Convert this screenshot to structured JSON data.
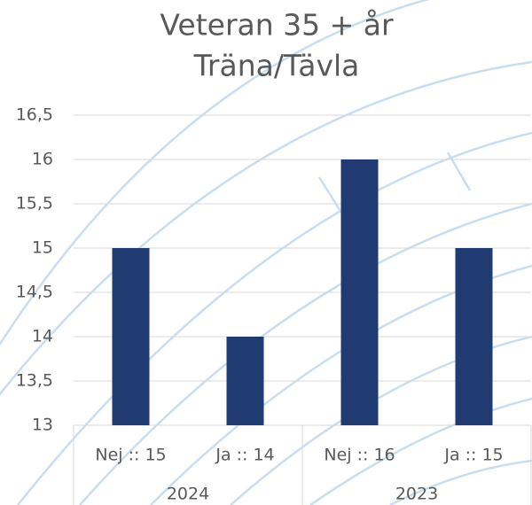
{
  "chart_data": {
    "type": "bar",
    "title": [
      "Veteran 35 + år",
      "Träna/Tävla"
    ],
    "categories": [
      "Nej :: 15",
      "Ja :: 14",
      "Nej :: 16",
      "Ja :: 15"
    ],
    "groups": [
      "2024",
      "2023"
    ],
    "values": [
      15,
      14,
      16,
      15
    ],
    "color": "#203a72",
    "ylim": [
      13,
      16.5
    ],
    "yticks": [
      13,
      {
        "value": 13.5,
        "label": "13,5"
      },
      14,
      {
        "value": 14.5,
        "label": "14,5"
      },
      15,
      {
        "value": 15.5,
        "label": "15,5"
      },
      16,
      {
        "value": 16.5,
        "label": "16,5"
      }
    ],
    "grid": true
  }
}
